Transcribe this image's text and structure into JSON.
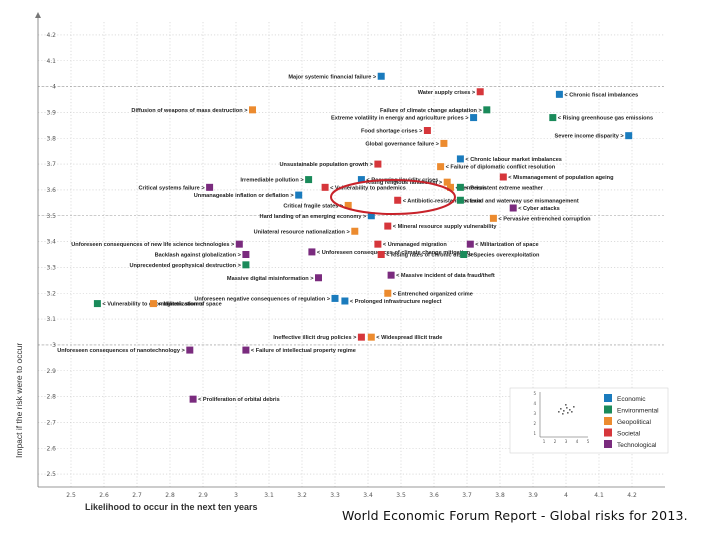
{
  "chart_data": {
    "type": "scatter",
    "title": "",
    "xlabel": "Likelihood to occur in the next ten years",
    "ylabel": "Impact if the risk were to occur",
    "xlim": [
      2.4,
      4.3
    ],
    "ylim": [
      2.45,
      4.25
    ],
    "x_ticks": [
      "2.5",
      "2.6",
      "2.7",
      "2.8",
      "2.9",
      "3",
      "3.1",
      "3.2",
      "3.3",
      "3.4",
      "3.5",
      "3.6",
      "3.7",
      "3.8",
      "3.9",
      "4",
      "4.1",
      "4.2"
    ],
    "y_ticks": [
      "2.5",
      "2.6",
      "2.7",
      "2.8",
      "2.9",
      "3",
      "3.1",
      "3.2",
      "3.3",
      "3.4",
      "3.5",
      "3.6",
      "3.7",
      "3.8",
      "3.9",
      "4",
      "4.1",
      "4.2"
    ],
    "legend": [
      {
        "name": "Economic",
        "color": "#1a7bbd"
      },
      {
        "name": "Environmental",
        "color": "#1a8a5a"
      },
      {
        "name": "Geopolitical",
        "color": "#ec8b2f"
      },
      {
        "name": "Societal",
        "color": "#d6363b"
      },
      {
        "name": "Technological",
        "color": "#7a2b7e"
      }
    ],
    "points": [
      {
        "label": "Major systemic financial failure",
        "cat": "Economic",
        "x": 3.44,
        "y": 4.04,
        "side": "left"
      },
      {
        "label": "Water supply crises",
        "cat": "Societal",
        "x": 3.74,
        "y": 3.98,
        "side": "left"
      },
      {
        "label": "Chronic fiscal imbalances",
        "cat": "Economic",
        "x": 3.98,
        "y": 3.97,
        "side": "right"
      },
      {
        "label": "Diffusion of weapons of mass destruction",
        "cat": "Geopolitical",
        "x": 3.05,
        "y": 3.91,
        "side": "left"
      },
      {
        "label": "Failure of climate change adaptation",
        "cat": "Environmental",
        "x": 3.76,
        "y": 3.91,
        "side": "left"
      },
      {
        "label": "Extreme volatility in energy and agriculture prices",
        "cat": "Economic",
        "x": 3.72,
        "y": 3.88,
        "side": "left"
      },
      {
        "label": "Rising greenhouse gas emissions",
        "cat": "Environmental",
        "x": 3.96,
        "y": 3.88,
        "side": "right"
      },
      {
        "label": "Food shortage crises",
        "cat": "Societal",
        "x": 3.58,
        "y": 3.83,
        "side": "left"
      },
      {
        "label": "Severe income disparity",
        "cat": "Economic",
        "x": 4.19,
        "y": 3.81,
        "side": "left"
      },
      {
        "label": "Global governance failure",
        "cat": "Geopolitical",
        "x": 3.63,
        "y": 3.78,
        "side": "left"
      },
      {
        "label": "Chronic labour market imbalances",
        "cat": "Economic",
        "x": 3.68,
        "y": 3.72,
        "side": "right"
      },
      {
        "label": "Unsustainable population growth",
        "cat": "Societal",
        "x": 3.43,
        "y": 3.7,
        "side": "left"
      },
      {
        "label": "Failure of diplomatic conflict resolution",
        "cat": "Geopolitical",
        "x": 3.62,
        "y": 3.69,
        "side": "right"
      },
      {
        "label": "Irremediable pollution",
        "cat": "Environmental",
        "x": 3.22,
        "y": 3.64,
        "side": "left"
      },
      {
        "label": "Recurring liquidity crises",
        "cat": "Economic",
        "x": 3.38,
        "y": 3.64,
        "side": "right"
      },
      {
        "label": "Rising religious fanaticism",
        "cat": "Geopolitical",
        "x": 3.64,
        "y": 3.63,
        "side": "left"
      },
      {
        "label": "Mismanagement of population ageing",
        "cat": "Societal",
        "x": 3.81,
        "y": 3.65,
        "side": "right"
      },
      {
        "label": "Terrorism",
        "cat": "Geopolitical",
        "x": 3.65,
        "y": 3.61,
        "side": "right"
      },
      {
        "label": "Persistent extreme weather",
        "cat": "Environmental",
        "x": 3.68,
        "y": 3.61,
        "side": "right"
      },
      {
        "label": "Critical systems failure",
        "cat": "Technological",
        "x": 2.92,
        "y": 3.61,
        "side": "left"
      },
      {
        "label": "Unmanageable inflation or deflation",
        "cat": "Economic",
        "x": 3.19,
        "y": 3.58,
        "side": "left"
      },
      {
        "label": "Vulnerability to pandemics",
        "cat": "Societal",
        "x": 3.27,
        "y": 3.61,
        "side": "right"
      },
      {
        "label": "Antibiotic-resistant bacteria",
        "cat": "Societal",
        "x": 3.49,
        "y": 3.56,
        "side": "right"
      },
      {
        "label": "Land and waterway use mismanagement",
        "cat": "Environmental",
        "x": 3.68,
        "y": 3.56,
        "side": "right"
      },
      {
        "label": "Critical fragile states",
        "cat": "Geopolitical",
        "x": 3.34,
        "y": 3.54,
        "side": "left"
      },
      {
        "label": "Cyber attacks",
        "cat": "Technological",
        "x": 3.84,
        "y": 3.53,
        "side": "right"
      },
      {
        "label": "Hard landing of an emerging economy",
        "cat": "Economic",
        "x": 3.41,
        "y": 3.5,
        "side": "left"
      },
      {
        "label": "Pervasive entrenched corruption",
        "cat": "Geopolitical",
        "x": 3.78,
        "y": 3.49,
        "side": "right"
      },
      {
        "label": "Unilateral resource nationalization",
        "cat": "Geopolitical",
        "x": 3.36,
        "y": 3.44,
        "side": "left"
      },
      {
        "label": "Mineral resource supply vulnerability",
        "cat": "Societal",
        "x": 3.46,
        "y": 3.46,
        "side": "right"
      },
      {
        "label": "Unforeseen consequences of new life science technologies",
        "cat": "Technological",
        "x": 3.01,
        "y": 3.39,
        "side": "left"
      },
      {
        "label": "Unmanaged migration",
        "cat": "Societal",
        "x": 3.43,
        "y": 3.39,
        "side": "right"
      },
      {
        "label": "Militarization of space",
        "cat": "Technological",
        "x": 3.71,
        "y": 3.39,
        "side": "right"
      },
      {
        "label": "Backlash against globalization",
        "cat": "Technological",
        "x": 3.03,
        "y": 3.35,
        "side": "left"
      },
      {
        "label": "Unforeseen consequences of climate change mitigation",
        "cat": "Technological",
        "x": 3.23,
        "y": 3.36,
        "side": "right"
      },
      {
        "label": "Rising rates of chronic disease",
        "cat": "Societal",
        "x": 3.44,
        "y": 3.35,
        "side": "right"
      },
      {
        "label": "Species overexploitation",
        "cat": "Environmental",
        "x": 3.69,
        "y": 3.35,
        "side": "right"
      },
      {
        "label": "Unprecedented geophysical destruction",
        "cat": "Environmental",
        "x": 3.03,
        "y": 3.31,
        "side": "left"
      },
      {
        "label": "Massive digital misinformation",
        "cat": "Technological",
        "x": 3.25,
        "y": 3.26,
        "side": "left"
      },
      {
        "label": "Massive incident of data fraud/theft",
        "cat": "Technological",
        "x": 3.47,
        "y": 3.27,
        "side": "right"
      },
      {
        "label": "Entrenched organized crime",
        "cat": "Geopolitical",
        "x": 3.46,
        "y": 3.2,
        "side": "right"
      },
      {
        "label": "Unforeseen negative consequences of regulation",
        "cat": "Economic",
        "x": 3.3,
        "y": 3.18,
        "side": "left"
      },
      {
        "label": "Prolonged infrastructure neglect",
        "cat": "Economic",
        "x": 3.33,
        "y": 3.17,
        "side": "right"
      },
      {
        "label": "Vulnerability to geomagnetic storms",
        "cat": "Environmental",
        "x": 2.58,
        "y": 3.16,
        "side": "right"
      },
      {
        "label": "Militarization of space",
        "cat": "Geopolitical",
        "x": 2.75,
        "y": 3.16,
        "side": "right"
      },
      {
        "label": "Ineffective illicit drug policies",
        "cat": "Societal",
        "x": 3.38,
        "y": 3.03,
        "side": "left"
      },
      {
        "label": "Widespread illicit trade",
        "cat": "Geopolitical",
        "x": 3.41,
        "y": 3.03,
        "side": "right"
      },
      {
        "label": "Unforeseen consequences of nanotechnology",
        "cat": "Technological",
        "x": 2.86,
        "y": 2.98,
        "side": "left"
      },
      {
        "label": "Failure of intellectual property regime",
        "cat": "Technological",
        "x": 3.03,
        "y": 2.98,
        "side": "right"
      },
      {
        "label": "Proliferation of orbital debris",
        "cat": "Technological",
        "x": 2.87,
        "y": 2.79,
        "side": "right"
      }
    ]
  },
  "caption": "World Economic Forum Report - Global risks for 2013.",
  "inset_ticks_x": [
    "1",
    "2",
    "3",
    "4",
    "5"
  ],
  "inset_ticks_y": [
    "5",
    "4",
    "3",
    "2",
    "1"
  ]
}
